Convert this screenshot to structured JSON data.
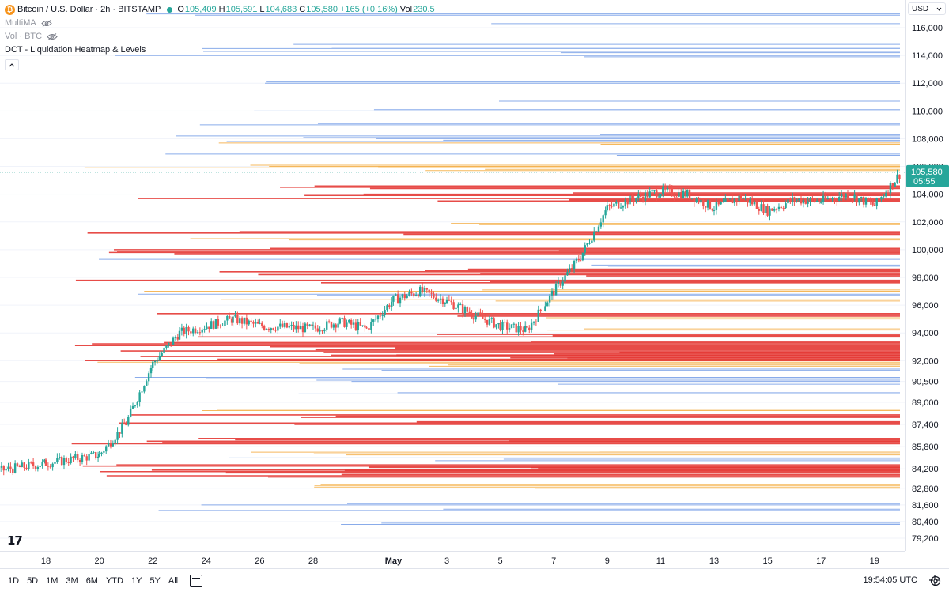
{
  "legend": {
    "symbol": "Bitcoin / U.S. Dollar · 2h · BITSTAMP",
    "o_label": "O",
    "o_value": "105,409",
    "h_label": "H",
    "h_value": "105,591",
    "l_label": "L",
    "l_value": "104,683",
    "c_label": "C",
    "c_value": "105,580",
    "change": "+165 (+0.16%)",
    "vol_label": "Vol",
    "vol_value": "230.5",
    "indicator1": "MultiMA",
    "indicator2": "Vol · BTC",
    "indicator3": "DCT - Liquidation Heatmap & Levels"
  },
  "currency": "USD",
  "price_scale": {
    "labels": [
      "116,000",
      "114,000",
      "112,000",
      "110,000",
      "108,000",
      "106,000",
      "104,000",
      "102,000",
      "100,000",
      "98,000",
      "96,000",
      "94,000",
      "92,000",
      "90,500",
      "89,000",
      "87,400",
      "85,800",
      "84,200",
      "82,800",
      "81,600",
      "80,400",
      "79,200"
    ],
    "last_price": "105,580",
    "countdown": "05:55"
  },
  "time_axis": {
    "labels": [
      "18",
      "20",
      "22",
      "24",
      "26",
      "28",
      "May",
      "3",
      "5",
      "7",
      "9",
      "11",
      "13",
      "15",
      "17",
      "19"
    ]
  },
  "bottom_bar": {
    "ranges": [
      "1D",
      "5D",
      "1M",
      "3M",
      "6M",
      "YTD",
      "1Y",
      "5Y",
      "All"
    ],
    "clock": "19:54:05 UTC"
  },
  "colors": {
    "up": "#26a69a",
    "down": "#ef5350",
    "red_level": "#e53935",
    "orange_level": "#f5b14b",
    "blue_level": "#7da3e8",
    "grid": "#f0f3fa"
  },
  "chart_data": {
    "type": "candlestick",
    "title": "Bitcoin / U.S. Dollar · 2h · BITSTAMP",
    "x_range_days": [
      "Apr 16",
      "May 20"
    ],
    "y_range": [
      78500,
      117000
    ],
    "key_prices": [
      {
        "date": "Apr 16",
        "price": 84000
      },
      {
        "date": "Apr 18",
        "price": 84600
      },
      {
        "date": "Apr 20",
        "price": 85200
      },
      {
        "date": "Apr 21",
        "price": 87500
      },
      {
        "date": "Apr 22",
        "price": 91800
      },
      {
        "date": "Apr 23",
        "price": 94000
      },
      {
        "date": "Apr 25",
        "price": 95000
      },
      {
        "date": "Apr 26",
        "price": 94500
      },
      {
        "date": "Apr 28",
        "price": 94300
      },
      {
        "date": "Apr 29",
        "price": 94800
      },
      {
        "date": "Apr 30",
        "price": 94300
      },
      {
        "date": "May 1",
        "price": 96400
      },
      {
        "date": "May 2",
        "price": 97000
      },
      {
        "date": "May 3",
        "price": 96300
      },
      {
        "date": "May 4",
        "price": 95300
      },
      {
        "date": "May 5",
        "price": 94500
      },
      {
        "date": "May 6",
        "price": 94200
      },
      {
        "date": "May 7",
        "price": 97000
      },
      {
        "date": "May 8",
        "price": 99500
      },
      {
        "date": "May 9",
        "price": 103000
      },
      {
        "date": "May 10",
        "price": 103700
      },
      {
        "date": "May 11",
        "price": 104200
      },
      {
        "date": "May 12",
        "price": 104000
      },
      {
        "date": "May 13",
        "price": 103000
      },
      {
        "date": "May 14",
        "price": 103800
      },
      {
        "date": "May 15",
        "price": 102800
      },
      {
        "date": "May 16",
        "price": 103600
      },
      {
        "date": "May 17",
        "price": 103500
      },
      {
        "date": "May 18",
        "price": 104000
      },
      {
        "date": "May 19",
        "price": 103200
      },
      {
        "date": "May 20",
        "price": 105580
      }
    ],
    "liquidation_levels": {
      "red": [
        93000,
        92700,
        92500,
        92300,
        92100,
        95300,
        93800,
        93300,
        84400,
        84200,
        84000,
        83700,
        86300,
        86100,
        87500,
        88000,
        97700,
        98200,
        98500,
        100000,
        99800,
        101200,
        104500,
        104000,
        103600
      ],
      "orange": [
        92000,
        91800,
        91600,
        85400,
        85200,
        82800,
        83000,
        88400,
        97000,
        96300,
        95000,
        94200,
        105700,
        105900,
        106000,
        100700,
        101800,
        107600
      ],
      "blue": [
        91300,
        90700,
        90500,
        90300,
        89600,
        84900,
        84700,
        81600,
        81200,
        80200,
        99300,
        98800,
        96700,
        108200,
        108000,
        107800,
        106800,
        109000,
        110000,
        110700,
        112000,
        113900,
        114200,
        114500,
        114800,
        116200,
        116900
      ]
    }
  }
}
